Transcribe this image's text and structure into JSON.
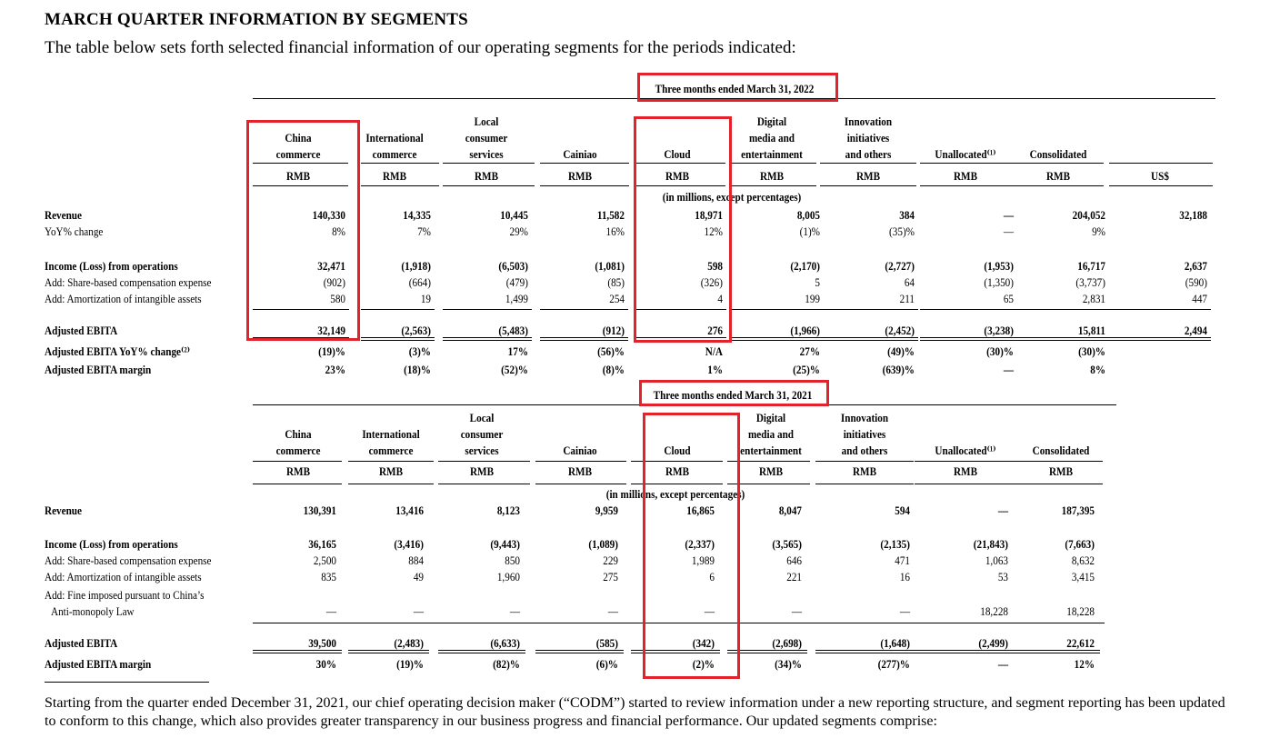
{
  "heading": "MARCH QUARTER INFORMATION BY SEGMENTS",
  "intro": "The table below sets forth selected financial information of our operating segments for the periods indicated:",
  "footer": "Starting from the quarter ended December 31, 2021, our chief operating decision maker (“CODM”) started to review information under a new reporting structure, and segment reporting has been updated to conform to this change, which also provides greater transparency in our business progress and financial performance. Our updated segments comprise:",
  "highlight_color": "#e3232c",
  "t2022": {
    "period": "Three months ended March 31, 2022",
    "columns": [
      {
        "h": [
          "China",
          "commerce"
        ],
        "cur": "RMB"
      },
      {
        "h": [
          "International",
          "commerce"
        ],
        "cur": "RMB"
      },
      {
        "h": [
          "Local",
          "consumer",
          "services"
        ],
        "cur": "RMB"
      },
      {
        "h": [
          "Cainiao"
        ],
        "cur": "RMB"
      },
      {
        "h": [
          "Cloud"
        ],
        "cur": "RMB"
      },
      {
        "h": [
          "Digital",
          "media and",
          "entertainment"
        ],
        "cur": "RMB"
      },
      {
        "h": [
          "Innovation",
          "initiatives",
          "and others"
        ],
        "cur": "RMB"
      },
      {
        "h": [
          "Unallocated⁽¹⁾"
        ],
        "cur": "RMB"
      },
      {
        "h": [
          "Consolidated"
        ],
        "cur": "RMB"
      },
      {
        "h": [
          ""
        ],
        "cur": "US$"
      }
    ],
    "units_note": "(in millions, except percentages)",
    "rows": [
      {
        "label": "Revenue",
        "bold": true,
        "values": [
          "140,330",
          "14,335",
          "10,445",
          "11,582",
          "18,971",
          "8,005",
          "384",
          "—",
          "204,052",
          "32,188"
        ]
      },
      {
        "label": "YoY% change",
        "bold": false,
        "values": [
          "8%",
          "7%",
          "29%",
          "16%",
          "12%",
          "(1)%",
          "(35)%",
          "—",
          "9%",
          ""
        ]
      },
      {
        "label": "Income (Loss) from operations",
        "bold": true,
        "values": [
          "32,471",
          "(1,918)",
          "(6,503)",
          "(1,081)",
          "598",
          "(2,170)",
          "(2,727)",
          "(1,953)",
          "16,717",
          "2,637"
        ]
      },
      {
        "label": "Add: Share-based compensation expense",
        "bold": false,
        "values": [
          "(902)",
          "(664)",
          "(479)",
          "(85)",
          "(326)",
          "5",
          "64",
          "(1,350)",
          "(3,737)",
          "(590)"
        ]
      },
      {
        "label": "Add: Amortization of intangible assets",
        "bold": false,
        "values": [
          "580",
          "19",
          "1,499",
          "254",
          "4",
          "199",
          "211",
          "65",
          "2,831",
          "447"
        ]
      },
      {
        "label": "Adjusted EBITA",
        "bold": true,
        "values": [
          "32,149",
          "(2,563)",
          "(5,483)",
          "(912)",
          "276",
          "(1,966)",
          "(2,452)",
          "(3,238)",
          "15,811",
          "2,494"
        ]
      },
      {
        "label": "Adjusted EBITA YoY% change⁽²⁾",
        "bold": true,
        "values": [
          "(19)%",
          "(3)%",
          "17%",
          "(56)%",
          "N/A",
          "27%",
          "(49)%",
          "(30)%",
          "(30)%",
          ""
        ]
      },
      {
        "label": "Adjusted EBITA margin",
        "bold": true,
        "values": [
          "23%",
          "(18)%",
          "(52)%",
          "(8)%",
          "1%",
          "(25)%",
          "(639)%",
          "—",
          "8%",
          ""
        ]
      }
    ]
  },
  "t2021": {
    "period": "Three months ended March 31, 2021",
    "columns": [
      {
        "h": [
          "China",
          "commerce"
        ],
        "cur": "RMB"
      },
      {
        "h": [
          "International",
          "commerce"
        ],
        "cur": "RMB"
      },
      {
        "h": [
          "Local",
          "consumer",
          "services"
        ],
        "cur": "RMB"
      },
      {
        "h": [
          "Cainiao"
        ],
        "cur": "RMB"
      },
      {
        "h": [
          "Cloud"
        ],
        "cur": "RMB"
      },
      {
        "h": [
          "Digital",
          "media and",
          "entertainment"
        ],
        "cur": "RMB"
      },
      {
        "h": [
          "Innovation",
          "initiatives",
          "and others"
        ],
        "cur": "RMB"
      },
      {
        "h": [
          "Unallocated⁽¹⁾"
        ],
        "cur": "RMB"
      },
      {
        "h": [
          "Consolidated"
        ],
        "cur": "RMB"
      }
    ],
    "units_note": "(in millions, except percentages)",
    "rows": [
      {
        "label": "Revenue",
        "bold": true,
        "values": [
          "130,391",
          "13,416",
          "8,123",
          "9,959",
          "16,865",
          "8,047",
          "594",
          "—",
          "187,395"
        ]
      },
      {
        "label": "Income (Loss) from operations",
        "bold": true,
        "values": [
          "36,165",
          "(3,416)",
          "(9,443)",
          "(1,089)",
          "(2,337)",
          "(3,565)",
          "(2,135)",
          "(21,843)",
          "(7,663)"
        ]
      },
      {
        "label": "Add: Share-based compensation expense",
        "bold": false,
        "values": [
          "2,500",
          "884",
          "850",
          "229",
          "1,989",
          "646",
          "471",
          "1,063",
          "8,632"
        ]
      },
      {
        "label": "Add: Amortization of intangible assets",
        "bold": false,
        "values": [
          "835",
          "49",
          "1,960",
          "275",
          "6",
          "221",
          "16",
          "53",
          "3,415"
        ]
      },
      {
        "label": "Add: Fine imposed pursuant to China’s",
        "label2": "Anti-monopoly Law",
        "bold": false,
        "values": [
          "—",
          "—",
          "—",
          "—",
          "—",
          "—",
          "—",
          "18,228",
          "18,228"
        ]
      },
      {
        "label": "Adjusted EBITA",
        "bold": true,
        "values": [
          "39,500",
          "(2,483)",
          "(6,633)",
          "(585)",
          "(342)",
          "(2,698)",
          "(1,648)",
          "(2,499)",
          "22,612"
        ]
      },
      {
        "label": "Adjusted EBITA margin",
        "bold": true,
        "values": [
          "30%",
          "(19)%",
          "(82)%",
          "(6)%",
          "(2)%",
          "(34)%",
          "(277)%",
          "—",
          "12%"
        ]
      }
    ]
  }
}
